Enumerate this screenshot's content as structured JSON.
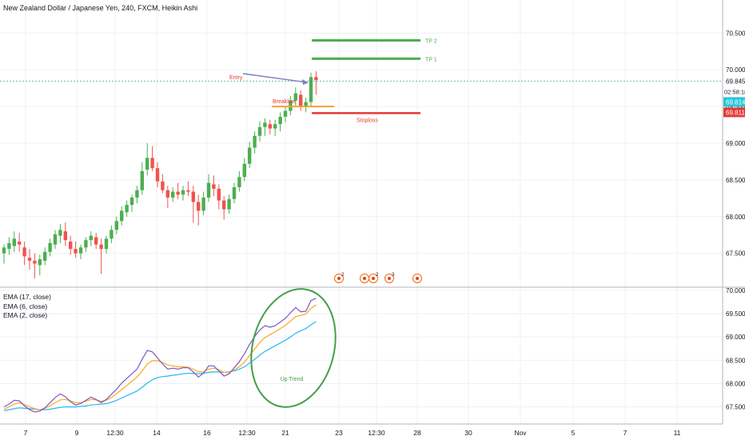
{
  "header": {
    "symbol_title": "New Zealand Dollar / Japanese Yen, 240, FXCM, Heikin Ashi"
  },
  "colors": {
    "bull": "#4caf50",
    "bear": "#ef5350",
    "tp_line": "#4caf50",
    "stop_line": "#e53935",
    "breakline": "#f7a030",
    "entry_arrow": "#7e7ebf",
    "ema17": "#29b6f6",
    "ema6": "#ffa726",
    "ema2": "#7e57c2",
    "circle": "#43a047",
    "price_dashed": "#26a69a",
    "grid": "#eef0f3"
  },
  "annotations": {
    "tp2": "TP 2",
    "tp1": "TP 1",
    "entry": "Entry",
    "breakline": "Breakline",
    "stoploss": "Stoploss",
    "up_trend": "Up Trend"
  },
  "price_tags": {
    "last_price": "69.845",
    "countdown": "02:58:18",
    "cyan_price": "69.814",
    "red_price": "69.811"
  },
  "events": [
    {
      "icon": "earnings-icon",
      "count": "2"
    },
    {
      "icon": "event-icon",
      "count": ""
    },
    {
      "icon": "event-icon",
      "count": "2"
    },
    {
      "icon": "event-icon",
      "count": "3"
    },
    {
      "icon": "event-icon",
      "count": ""
    }
  ],
  "ema_legend": [
    "EMA (17, close)",
    "EMA (6, close)",
    "EMA (2, close)"
  ],
  "chart_data": [
    {
      "type": "candlestick",
      "title": "New Zealand Dollar / Japanese Yen, 240, FXCM, Heikin Ashi",
      "y_ticks": [
        "70.500",
        "70.000",
        "69.500",
        "69.000",
        "68.500",
        "68.000",
        "67.500"
      ],
      "ylim": [
        67.05,
        70.95
      ],
      "levels": {
        "tp2": 70.4,
        "tp1": 70.15,
        "breakline": 69.5,
        "stoploss": 69.41,
        "last": 69.845
      },
      "candles": [
        {
          "o": 67.5,
          "h": 67.62,
          "l": 67.36,
          "c": 67.58
        },
        {
          "o": 67.56,
          "h": 67.72,
          "l": 67.48,
          "c": 67.64
        },
        {
          "o": 67.6,
          "h": 67.8,
          "l": 67.52,
          "c": 67.7
        },
        {
          "o": 67.66,
          "h": 67.78,
          "l": 67.52,
          "c": 67.62
        },
        {
          "o": 67.58,
          "h": 67.66,
          "l": 67.34,
          "c": 67.46
        },
        {
          "o": 67.44,
          "h": 67.56,
          "l": 67.28,
          "c": 67.4
        },
        {
          "o": 67.4,
          "h": 67.5,
          "l": 67.16,
          "c": 67.36
        },
        {
          "o": 67.34,
          "h": 67.48,
          "l": 67.2,
          "c": 67.42
        },
        {
          "o": 67.4,
          "h": 67.58,
          "l": 67.34,
          "c": 67.52
        },
        {
          "o": 67.52,
          "h": 67.7,
          "l": 67.46,
          "c": 67.64
        },
        {
          "o": 67.62,
          "h": 67.82,
          "l": 67.56,
          "c": 67.76
        },
        {
          "o": 67.74,
          "h": 67.9,
          "l": 67.64,
          "c": 67.82
        },
        {
          "o": 67.8,
          "h": 67.92,
          "l": 67.6,
          "c": 67.68
        },
        {
          "o": 67.66,
          "h": 67.74,
          "l": 67.48,
          "c": 67.56
        },
        {
          "o": 67.56,
          "h": 67.66,
          "l": 67.44,
          "c": 67.5
        },
        {
          "o": 67.5,
          "h": 67.62,
          "l": 67.42,
          "c": 67.58
        },
        {
          "o": 67.58,
          "h": 67.72,
          "l": 67.52,
          "c": 67.68
        },
        {
          "o": 67.68,
          "h": 67.8,
          "l": 67.6,
          "c": 67.74
        },
        {
          "o": 67.72,
          "h": 67.78,
          "l": 67.56,
          "c": 67.62
        },
        {
          "o": 67.62,
          "h": 67.7,
          "l": 67.22,
          "c": 67.56
        },
        {
          "o": 67.56,
          "h": 67.74,
          "l": 67.5,
          "c": 67.7
        },
        {
          "o": 67.7,
          "h": 67.88,
          "l": 67.64,
          "c": 67.82
        },
        {
          "o": 67.82,
          "h": 68.0,
          "l": 67.76,
          "c": 67.94
        },
        {
          "o": 67.94,
          "h": 68.14,
          "l": 67.88,
          "c": 68.08
        },
        {
          "o": 68.06,
          "h": 68.22,
          "l": 68.0,
          "c": 68.16
        },
        {
          "o": 68.16,
          "h": 68.3,
          "l": 68.06,
          "c": 68.26
        },
        {
          "o": 68.26,
          "h": 68.42,
          "l": 68.18,
          "c": 68.36
        },
        {
          "o": 68.36,
          "h": 68.74,
          "l": 68.3,
          "c": 68.62
        },
        {
          "o": 68.64,
          "h": 69.0,
          "l": 68.56,
          "c": 68.8
        },
        {
          "o": 68.8,
          "h": 68.96,
          "l": 68.62,
          "c": 68.66
        },
        {
          "o": 68.66,
          "h": 68.74,
          "l": 68.4,
          "c": 68.48
        },
        {
          "o": 68.48,
          "h": 68.58,
          "l": 68.32,
          "c": 68.36
        },
        {
          "o": 68.36,
          "h": 68.42,
          "l": 68.12,
          "c": 68.26
        },
        {
          "o": 68.26,
          "h": 68.4,
          "l": 68.2,
          "c": 68.34
        },
        {
          "o": 68.34,
          "h": 68.46,
          "l": 68.24,
          "c": 68.3
        },
        {
          "o": 68.3,
          "h": 68.42,
          "l": 68.22,
          "c": 68.36
        },
        {
          "o": 68.36,
          "h": 68.48,
          "l": 68.28,
          "c": 68.34
        },
        {
          "o": 68.34,
          "h": 68.42,
          "l": 67.92,
          "c": 68.2
        },
        {
          "o": 68.2,
          "h": 68.3,
          "l": 67.88,
          "c": 68.08
        },
        {
          "o": 68.08,
          "h": 68.34,
          "l": 68.02,
          "c": 68.26
        },
        {
          "o": 68.26,
          "h": 68.58,
          "l": 68.2,
          "c": 68.46
        },
        {
          "o": 68.44,
          "h": 68.56,
          "l": 68.28,
          "c": 68.38
        },
        {
          "o": 68.38,
          "h": 68.44,
          "l": 68.1,
          "c": 68.22
        },
        {
          "o": 68.22,
          "h": 68.28,
          "l": 67.96,
          "c": 68.1
        },
        {
          "o": 68.1,
          "h": 68.3,
          "l": 68.04,
          "c": 68.24
        },
        {
          "o": 68.24,
          "h": 68.46,
          "l": 68.18,
          "c": 68.4
        },
        {
          "o": 68.4,
          "h": 68.62,
          "l": 68.34,
          "c": 68.54
        },
        {
          "o": 68.54,
          "h": 68.8,
          "l": 68.48,
          "c": 68.72
        },
        {
          "o": 68.72,
          "h": 69.02,
          "l": 68.66,
          "c": 68.94
        },
        {
          "o": 68.94,
          "h": 69.16,
          "l": 68.86,
          "c": 69.1
        },
        {
          "o": 69.1,
          "h": 69.3,
          "l": 69.02,
          "c": 69.22
        },
        {
          "o": 69.22,
          "h": 69.34,
          "l": 69.1,
          "c": 69.28
        },
        {
          "o": 69.26,
          "h": 69.32,
          "l": 69.12,
          "c": 69.2
        },
        {
          "o": 69.2,
          "h": 69.32,
          "l": 69.1,
          "c": 69.26
        },
        {
          "o": 69.26,
          "h": 69.42,
          "l": 69.16,
          "c": 69.36
        },
        {
          "o": 69.36,
          "h": 69.5,
          "l": 69.28,
          "c": 69.44
        },
        {
          "o": 69.44,
          "h": 69.64,
          "l": 69.38,
          "c": 69.58
        },
        {
          "o": 69.58,
          "h": 69.76,
          "l": 69.5,
          "c": 69.68
        },
        {
          "o": 69.66,
          "h": 69.72,
          "l": 69.44,
          "c": 69.5
        },
        {
          "o": 69.5,
          "h": 69.62,
          "l": 69.42,
          "c": 69.56
        },
        {
          "o": 69.56,
          "h": 69.96,
          "l": 69.5,
          "c": 69.9
        },
        {
          "o": 69.9,
          "h": 69.98,
          "l": 69.66,
          "c": 69.86
        }
      ]
    },
    {
      "type": "line",
      "title": "EMA (17, close), EMA (6, close), EMA (2, close)",
      "y_ticks": [
        "70.000",
        "69.500",
        "69.000",
        "68.500",
        "68.000",
        "67.500"
      ],
      "ylim": [
        67.15,
        70.05
      ],
      "series": [
        {
          "name": "EMA (17, close)",
          "values": [
            67.42,
            67.44,
            67.46,
            67.48,
            67.47,
            67.46,
            67.45,
            67.44,
            67.44,
            67.45,
            67.47,
            67.49,
            67.5,
            67.5,
            67.5,
            67.51,
            67.52,
            67.54,
            67.55,
            67.56,
            67.57,
            67.6,
            67.64,
            67.69,
            67.74,
            67.79,
            67.84,
            67.92,
            68.01,
            68.08,
            68.13,
            68.15,
            68.16,
            68.18,
            68.19,
            68.21,
            68.22,
            68.22,
            68.21,
            68.22,
            68.24,
            68.25,
            68.25,
            68.24,
            68.25,
            68.27,
            68.31,
            68.36,
            68.44,
            68.52,
            68.61,
            68.69,
            68.75,
            68.81,
            68.87,
            68.93,
            69.0,
            69.08,
            69.13,
            69.18,
            69.26,
            69.33
          ]
        },
        {
          "name": "EMA (6, close)",
          "values": [
            67.45,
            67.5,
            67.56,
            67.59,
            67.55,
            67.5,
            67.46,
            67.44,
            67.47,
            67.52,
            67.59,
            67.65,
            67.66,
            67.63,
            67.59,
            67.59,
            67.62,
            67.66,
            67.65,
            67.62,
            67.64,
            67.7,
            67.78,
            67.87,
            67.96,
            68.05,
            68.14,
            68.27,
            68.42,
            68.49,
            68.49,
            68.45,
            68.4,
            68.38,
            68.36,
            68.36,
            68.35,
            68.31,
            68.25,
            68.25,
            68.31,
            68.33,
            68.3,
            68.24,
            68.24,
            68.29,
            68.36,
            68.46,
            68.6,
            68.74,
            68.88,
            68.99,
            69.05,
            69.11,
            69.18,
            69.25,
            69.34,
            69.44,
            69.46,
            69.49,
            69.61,
            69.69
          ]
        },
        {
          "name": "EMA (2, close)",
          "values": [
            67.5,
            67.56,
            67.64,
            67.63,
            67.52,
            67.44,
            67.39,
            67.41,
            67.48,
            67.59,
            67.7,
            67.78,
            67.72,
            67.61,
            67.54,
            67.57,
            67.64,
            67.71,
            67.66,
            67.59,
            67.66,
            67.77,
            67.88,
            68.01,
            68.11,
            68.21,
            68.31,
            68.52,
            68.71,
            68.68,
            68.55,
            68.42,
            68.31,
            68.33,
            68.31,
            68.34,
            68.34,
            68.25,
            68.14,
            68.22,
            68.38,
            68.38,
            68.27,
            68.16,
            68.21,
            68.34,
            68.47,
            68.64,
            68.84,
            69.01,
            69.15,
            69.24,
            69.21,
            69.24,
            69.32,
            69.4,
            69.52,
            69.63,
            69.54,
            69.55,
            69.78,
            69.83
          ]
        }
      ]
    }
  ],
  "x_axis_ticks": [
    "7",
    "9",
    "12:30",
    "14",
    "16",
    "12:30",
    "21",
    "23",
    "12:30",
    "28",
    "30",
    "Nov",
    "5",
    "7",
    "11"
  ]
}
